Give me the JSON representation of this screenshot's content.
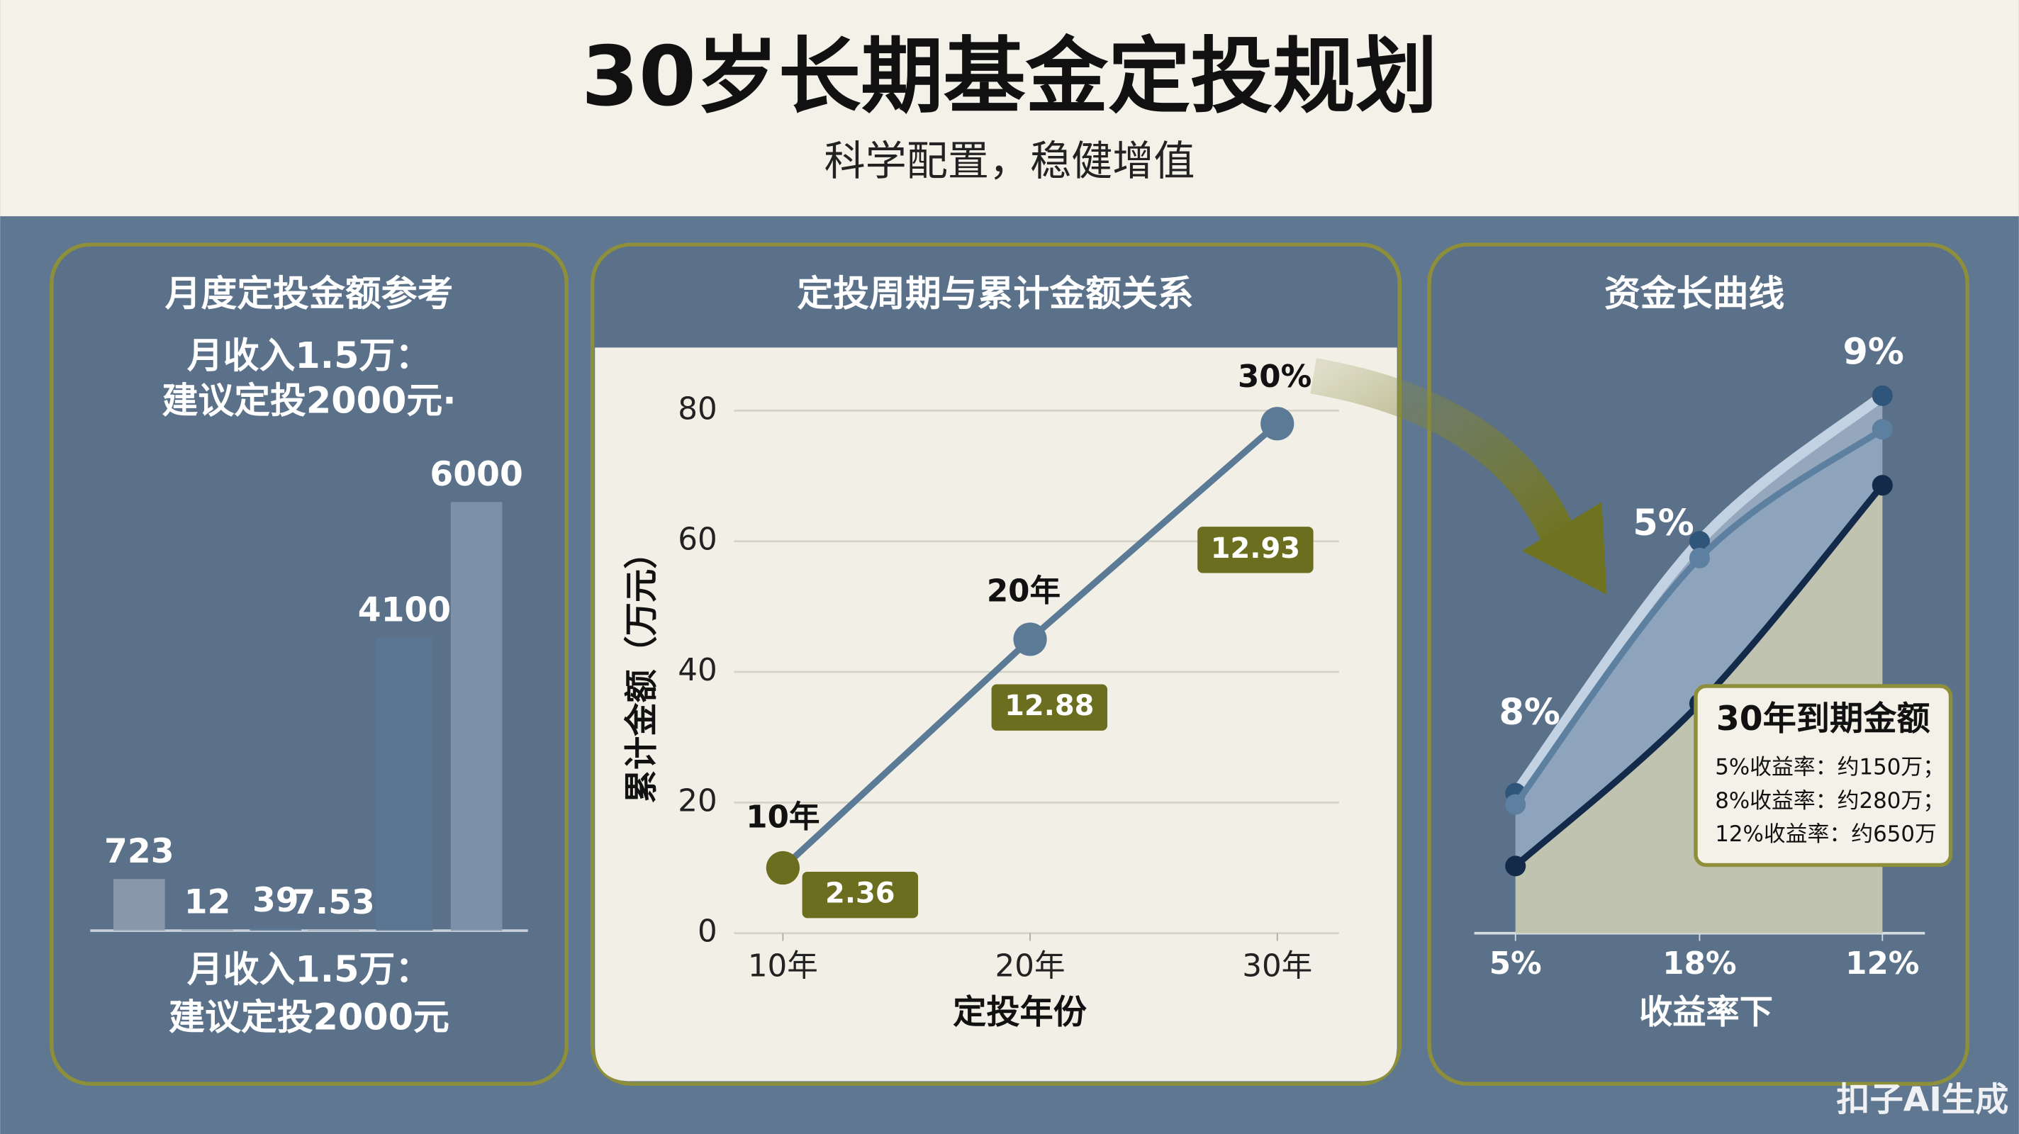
{
  "title": "30岁长期基金定投规划",
  "subtitle": "科学配置，稳健增值",
  "chart_data": [
    {
      "type": "bar",
      "title": "月度定投金额参考",
      "subtitle": [
        "月收入1.5万：",
        "建议定投2000元·"
      ],
      "values": [
        723,
        12,
        39,
        7.53,
        4100,
        6000
      ],
      "colors": [
        "#8d9cae",
        "#909fb1",
        "#5b7794",
        "#8d9cae",
        "#5b7794",
        "#7f95ab"
      ],
      "note": [
        "月收入1.5万：",
        "建议定投2000元"
      ]
    },
    {
      "type": "line",
      "title": "定投周期与累计金额关系",
      "ylabel": "累计金额（万元）",
      "xlabel": "定投年份",
      "categories": [
        "10年",
        "20年",
        "30年"
      ],
      "values": [
        10,
        45,
        78
      ],
      "ylim": [
        0,
        80
      ],
      "yticks": [
        0,
        20,
        40,
        60,
        80
      ],
      "grid": true,
      "color": "#5b7a96",
      "marker_colors": [
        "#6b6e1e",
        "#5b7a96",
        "#5b7a96"
      ],
      "point_labels": [
        "10年",
        "20年",
        "30%"
      ],
      "annotations": [
        "2.36",
        "12.88",
        "12.93"
      ]
    },
    {
      "type": "area",
      "title": "资金长曲线",
      "xlabel": "收益率下",
      "categories": [
        "5%",
        "18%",
        "12%"
      ],
      "series": [
        {
          "color": "#c3d2e2",
          "values": [
            25,
            70,
            96
          ]
        },
        {
          "color": "#5d7fa0",
          "values": [
            23,
            67,
            90
          ]
        },
        {
          "color": "#142a4a",
          "values": [
            12,
            41,
            80
          ]
        }
      ],
      "ylim": [
        0,
        100
      ],
      "annotations": [
        "8%",
        "5%",
        "9%"
      ],
      "legend": {
        "title": "30年到期金额",
        "items": [
          "5%收益率：约150万；",
          "8%收益率：约280万；",
          "12%收益率：约650万"
        ]
      }
    }
  ],
  "watermark": "扣子AI生成"
}
